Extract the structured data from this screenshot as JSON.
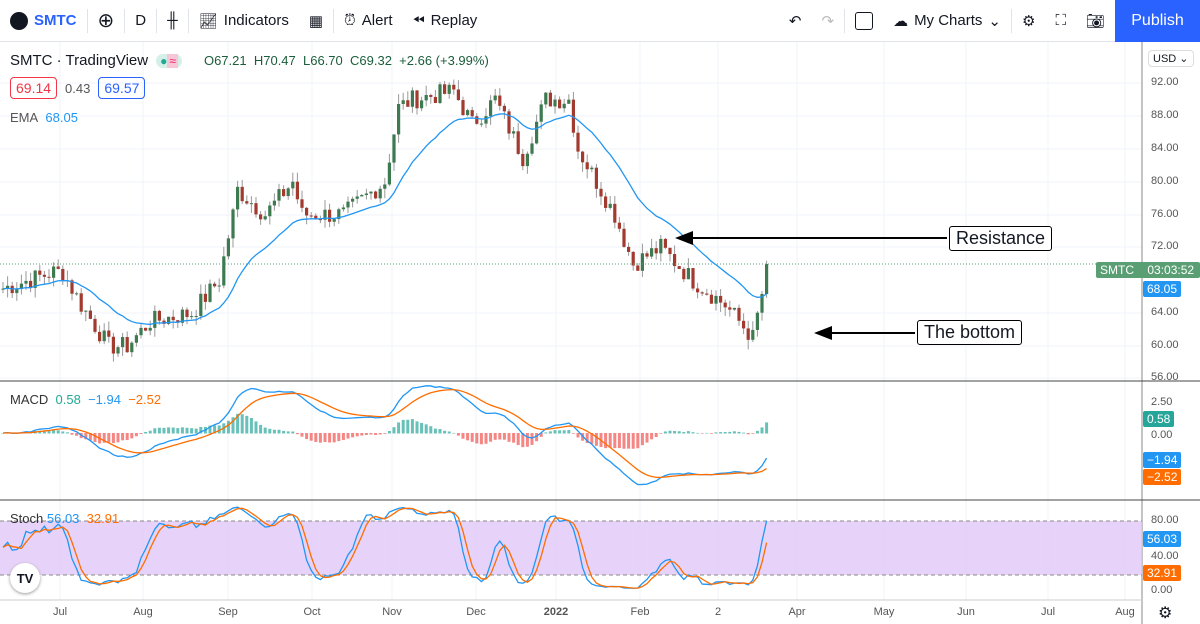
{
  "toolbar": {
    "symbol": "SMTC",
    "interval": "D",
    "indicators": "Indicators",
    "alert": "Alert",
    "replay": "Replay",
    "my_charts": "My Charts",
    "publish": "Publish"
  },
  "legend": {
    "title": "SMTC · TradingView",
    "open": "O67.21",
    "high": "H70.47",
    "low": "L66.70",
    "close": "C69.32",
    "change": "+2.66 (+3.99%)",
    "bid": "69.14",
    "spread": "0.43",
    "ask": "69.57",
    "ema_label": "EMA",
    "ema_value": "68.05"
  },
  "macd": {
    "label": "MACD",
    "hist": "0.58",
    "macd": "−1.94",
    "signal": "−2.52"
  },
  "stoch": {
    "label": "Stoch",
    "k": "56.03",
    "d": "32.91"
  },
  "price_axis": {
    "currency": "USD",
    "ticks": [
      "92.00",
      "88.00",
      "84.00",
      "80.00",
      "76.00",
      "72.00",
      "64.00",
      "60.00",
      "56.00"
    ],
    "last_symbol": "SMTC",
    "countdown": "03:03:52",
    "ema_tag": "68.05"
  },
  "macd_axis": {
    "ticks": [
      "2.50",
      "0.00"
    ],
    "hist_tag": "0.58",
    "macd_tag": "−1.94",
    "signal_tag": "−2.52"
  },
  "stoch_axis": {
    "ticks": [
      "80.00",
      "40.00",
      "0.00"
    ],
    "k_tag": "56.03",
    "d_tag": "32.91"
  },
  "time_axis": [
    "Jul",
    "Aug",
    "Sep",
    "Oct",
    "Nov",
    "Dec",
    "2022",
    "Feb",
    "2",
    "Apr",
    "May",
    "Jun",
    "Jul",
    "Aug"
  ],
  "annotations": {
    "resistance": "Resistance",
    "bottom": "The bottom"
  },
  "colors": {
    "up": "#3d7a4f",
    "down": "#a33a2f",
    "ema": "#2196f3",
    "macd": "#2196f3",
    "signal": "#ff6d00",
    "stoch_band": "#e1c8f7"
  },
  "chart_data": {
    "type": "candlestick",
    "price_range": [
      56,
      96
    ],
    "waypoints": [
      [
        0,
        67
      ],
      [
        11,
        69
      ],
      [
        13,
        69
      ],
      [
        17,
        65
      ],
      [
        23,
        60
      ],
      [
        27,
        60
      ],
      [
        32,
        63
      ],
      [
        41,
        64
      ],
      [
        47,
        68
      ],
      [
        50,
        76
      ],
      [
        51,
        79
      ],
      [
        57,
        76
      ],
      [
        63,
        80
      ],
      [
        65,
        76
      ],
      [
        74,
        76
      ],
      [
        83,
        80
      ],
      [
        86,
        89
      ],
      [
        89,
        90
      ],
      [
        98,
        91
      ],
      [
        102,
        87
      ],
      [
        107,
        90
      ],
      [
        113,
        83
      ],
      [
        118,
        90
      ],
      [
        123,
        90
      ],
      [
        125,
        84
      ],
      [
        133,
        76
      ],
      [
        137,
        70
      ],
      [
        143,
        72
      ],
      [
        150,
        68
      ],
      [
        157,
        65
      ],
      [
        163,
        61
      ],
      [
        166,
        69
      ]
    ]
  }
}
